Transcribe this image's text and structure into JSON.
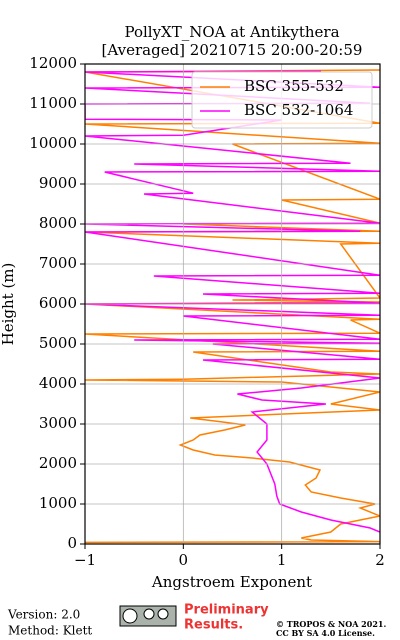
{
  "chart_data": {
    "type": "line",
    "title": [
      "PollyXT_NOA at Antikythera",
      "[Averaged] 20210715 20:00-20:59"
    ],
    "x_label": "Angstroem Exponent",
    "y_label": "Height (m)",
    "xlim": [
      -1,
      2
    ],
    "ylim": [
      0,
      12000
    ],
    "xticks": [
      {
        "value": -1,
        "label": "−1"
      },
      0,
      1,
      2
    ],
    "yticks": [
      0,
      1000,
      2000,
      3000,
      4000,
      5000,
      6000,
      7000,
      8000,
      9000,
      10000,
      11000,
      12000
    ],
    "grid": true,
    "legend": "upper right",
    "series": [
      {
        "name": "BSC 355-532",
        "color": "#ff8000",
        "y": [
          40,
          60,
          100,
          150,
          300,
          500,
          700,
          900,
          1000,
          1150,
          1300,
          1475,
          1650,
          1850,
          2050,
          2150,
          2225,
          2350,
          2475,
          2600,
          2725,
          2850,
          2975,
          3050,
          3150,
          3350,
          3500,
          3800,
          4050,
          4100,
          4120,
          4250,
          4300,
          4800,
          4820,
          5250,
          5270,
          5600,
          5620,
          6000,
          6050,
          6100,
          6150,
          7500,
          7520,
          7800,
          7820,
          8000,
          8020,
          8600,
          8620,
          10000,
          10020,
          10500,
          10520,
          11800,
          11850
        ],
        "x": [
          -1,
          2,
          1.3,
          1.2,
          1.5,
          1.6,
          2,
          1.8,
          1.95,
          1.6,
          1.3,
          1.24,
          1.35,
          1.39,
          1.08,
          0.7,
          0.32,
          0.1,
          -0.03,
          0.1,
          0.17,
          0.42,
          0.63,
          0.4,
          0.07,
          2,
          1.5,
          2,
          1.0,
          -1,
          0,
          2,
          1.5,
          0.1,
          2,
          -1,
          2,
          1.7,
          2,
          -1,
          2,
          0.5,
          2,
          1.6,
          2,
          -1,
          2,
          0,
          2,
          1,
          2,
          0.5,
          2,
          -1,
          2,
          -1,
          2
        ]
      },
      {
        "name": "BSC 532-1064",
        "color": "#ff00ff",
        "y": [
          300,
          400,
          600,
          800,
          1000,
          1200,
          1500,
          2000,
          2300,
          2600,
          3000,
          3300,
          3500,
          3600,
          3750,
          3900,
          4150,
          4600,
          4620,
          5000,
          5020,
          5100,
          5120,
          5700,
          5720,
          6000,
          6020,
          6250,
          6270,
          6700,
          6720,
          7800,
          7820,
          8000,
          8020,
          8750,
          8770,
          9300,
          9320,
          9500,
          9520,
          10200,
          10220,
          10600,
          10620,
          11000,
          11020,
          11400,
          11420,
          11800,
          11820
        ],
        "x": [
          2,
          1.9,
          1.5,
          1.2,
          0.98,
          0.95,
          0.93,
          0.85,
          0.75,
          0.85,
          0.85,
          0.7,
          1.45,
          0.8,
          0.55,
          1.2,
          2,
          0.2,
          2,
          0.3,
          2,
          -0.5,
          2,
          0,
          2,
          -1,
          2,
          0.2,
          2,
          -0.3,
          2,
          -1,
          1.8,
          -1,
          2,
          -0.4,
          0.1,
          -0.8,
          2,
          -0.5,
          1.7,
          -1,
          0,
          1,
          -1,
          -1,
          1.9,
          -1,
          2,
          -1,
          1.4
        ]
      }
    ]
  },
  "footer": {
    "version": "Version: 2.0",
    "method": "Method: Klett",
    "preliminary": [
      "Preliminary",
      "Results."
    ],
    "copyright": [
      "© TROPOS & NOA 2021.",
      "CC BY SA 4.0 License."
    ]
  }
}
